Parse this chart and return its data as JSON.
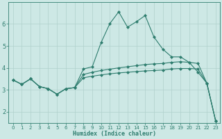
{
  "xlabel": "Humidex (Indice chaleur)",
  "xlim": [
    -0.5,
    23.5
  ],
  "ylim": [
    1.5,
    7.0
  ],
  "yticks": [
    2,
    3,
    4,
    5,
    6
  ],
  "xticks": [
    0,
    1,
    2,
    3,
    4,
    5,
    6,
    7,
    8,
    9,
    10,
    11,
    12,
    13,
    14,
    15,
    16,
    17,
    18,
    19,
    20,
    21,
    22,
    23
  ],
  "bg_color": "#cde8e5",
  "grid_color": "#b0d0cc",
  "line_color": "#2e7d6e",
  "line1_x": [
    0,
    1,
    2,
    3,
    4,
    5,
    6,
    7,
    8,
    9,
    10,
    11,
    12,
    13,
    14,
    15,
    16,
    17,
    18,
    19,
    20,
    21,
    22,
    23
  ],
  "line1_y": [
    3.45,
    3.25,
    3.5,
    3.15,
    3.05,
    2.8,
    3.05,
    3.1,
    3.95,
    4.05,
    5.15,
    6.02,
    6.55,
    5.85,
    6.1,
    6.38,
    5.4,
    4.85,
    4.5,
    4.5,
    4.25,
    3.8,
    3.3,
    1.58
  ],
  "line2_x": [
    0,
    1,
    2,
    3,
    4,
    5,
    6,
    7,
    8,
    9,
    10,
    11,
    12,
    13,
    14,
    15,
    16,
    17,
    18,
    19,
    20,
    21,
    22,
    23
  ],
  "line2_y": [
    3.45,
    3.25,
    3.5,
    3.15,
    3.05,
    2.8,
    3.05,
    3.1,
    3.7,
    3.8,
    3.88,
    3.94,
    4.0,
    4.05,
    4.1,
    4.15,
    4.18,
    4.2,
    4.25,
    4.28,
    4.25,
    4.2,
    3.3,
    1.58
  ],
  "line3_x": [
    0,
    1,
    2,
    3,
    4,
    5,
    6,
    7,
    8,
    9,
    10,
    11,
    12,
    13,
    14,
    15,
    16,
    17,
    18,
    19,
    20,
    21,
    22,
    23
  ],
  "line3_y": [
    3.45,
    3.25,
    3.5,
    3.15,
    3.05,
    2.8,
    3.05,
    3.1,
    3.55,
    3.62,
    3.68,
    3.73,
    3.77,
    3.8,
    3.83,
    3.86,
    3.88,
    3.9,
    3.95,
    3.97,
    3.97,
    3.95,
    3.3,
    1.58
  ]
}
